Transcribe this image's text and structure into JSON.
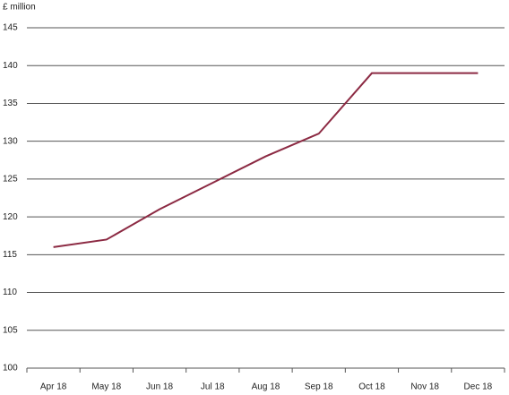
{
  "chart_data": {
    "type": "line",
    "y_axis_label": "£ million",
    "categories": [
      "Apr 18",
      "May 18",
      "Jun 18",
      "Jul 18",
      "Aug 18",
      "Sep 18",
      "Oct 18",
      "Nov 18",
      "Dec 18"
    ],
    "values": [
      116,
      117,
      121,
      124.5,
      128,
      131,
      139,
      139,
      139
    ],
    "color": "#8c2a43",
    "ylim": [
      100,
      145
    ],
    "yticks": [
      100,
      105,
      110,
      115,
      120,
      125,
      130,
      135,
      140,
      145
    ],
    "grid": true
  }
}
